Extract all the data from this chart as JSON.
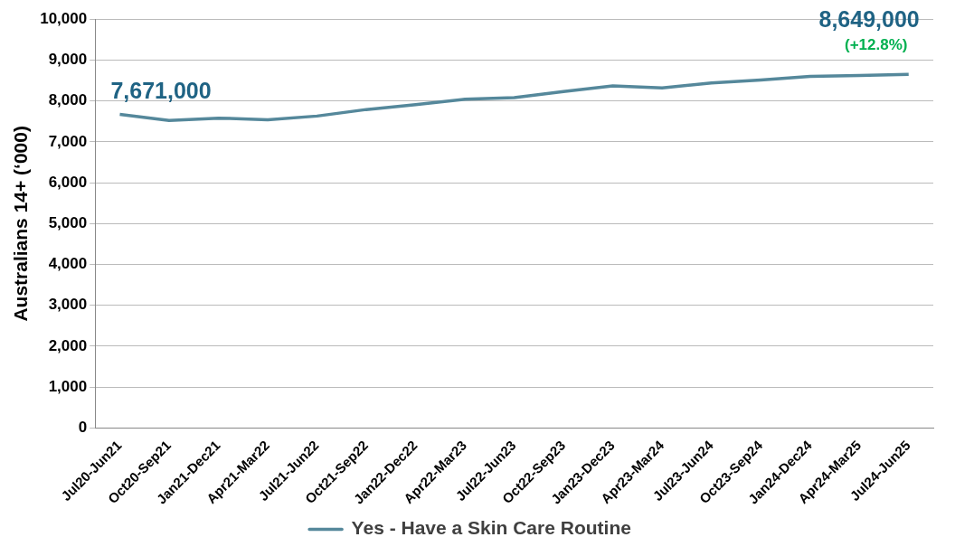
{
  "chart_data": {
    "type": "line",
    "ylabel": "Australians 14+ (‘000)",
    "categories": [
      "Jul20-Jun21",
      "Oct20-Sep21",
      "Jan21-Dec21",
      "Apr21-Mar22",
      "Jul21-Jun22",
      "Oct21-Sep22",
      "Jan22-Dec22",
      "Apr22-Mar23",
      "Jul22-Jun23",
      "Oct22-Sep23",
      "Jan23-Dec23",
      "Apr23-Mar24",
      "Jul23-Jun24",
      "Oct23-Sep24",
      "Jan24-Dec24",
      "Apr24-Mar25",
      "Jul24-Jun25"
    ],
    "series": [
      {
        "name": "Yes - Have a Skin Care Routine",
        "color": "#55889b",
        "values": [
          7671,
          7520,
          7580,
          7540,
          7630,
          7790,
          7910,
          8040,
          8080,
          8230,
          8370,
          8320,
          8440,
          8510,
          8600,
          8620,
          8649
        ]
      }
    ],
    "ylim": [
      0,
      10000
    ],
    "yticks": [
      {
        "value": 0,
        "label": "0"
      },
      {
        "value": 1000,
        "label": "1,000"
      },
      {
        "value": 2000,
        "label": "2,000"
      },
      {
        "value": 3000,
        "label": "3,000"
      },
      {
        "value": 4000,
        "label": "4,000"
      },
      {
        "value": 5000,
        "label": "5,000"
      },
      {
        "value": 6000,
        "label": "6,000"
      },
      {
        "value": 7000,
        "label": "7,000"
      },
      {
        "value": 8000,
        "label": "8,000"
      },
      {
        "value": 9000,
        "label": "9,000"
      },
      {
        "value": 10000,
        "label": "10,000"
      }
    ],
    "grid": "y",
    "legend": "bottom",
    "marker": "none",
    "line_style": "solid",
    "annotations": [
      {
        "text": "7,671,000",
        "x": "Jul20-Jun21",
        "y": 7671
      },
      {
        "text": "8,649,000",
        "x": "Jul24-Jun25",
        "y": 8649
      },
      {
        "text": "(+12.8%)",
        "x": "Jul24-Jun25",
        "y": 8649
      }
    ]
  }
}
